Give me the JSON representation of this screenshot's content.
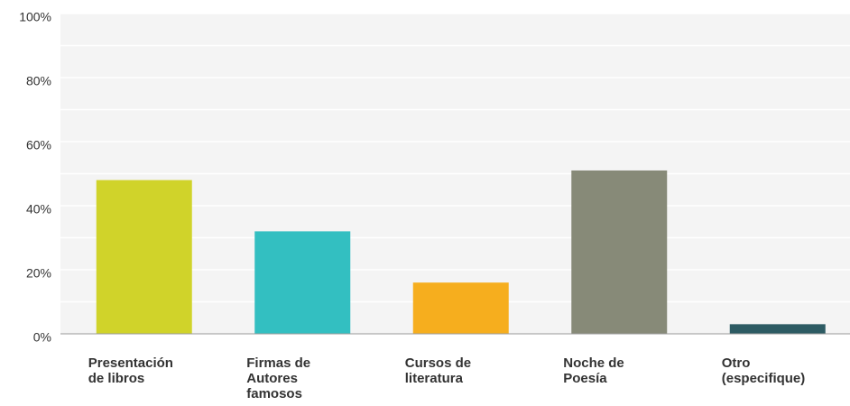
{
  "chart_data": {
    "type": "bar",
    "categories": [
      "Presentación de libros",
      "Firmas de Autores famosos",
      "Cursos de literatura",
      "Noche de Poesía",
      "Otro (especifique)"
    ],
    "values": [
      48,
      32,
      16,
      51,
      3
    ],
    "colors": [
      "#d0d32a",
      "#33bfc1",
      "#f6ae1e",
      "#878a78",
      "#2d5b63"
    ],
    "ylim": [
      0,
      100
    ],
    "yticks": [
      {
        "value": 0,
        "label": "0%"
      },
      {
        "value": 20,
        "label": "20%"
      },
      {
        "value": 40,
        "label": "40%"
      },
      {
        "value": 60,
        "label": "60%"
      },
      {
        "value": 80,
        "label": "80%"
      },
      {
        "value": 100,
        "label": "100%"
      }
    ],
    "grid": true
  }
}
